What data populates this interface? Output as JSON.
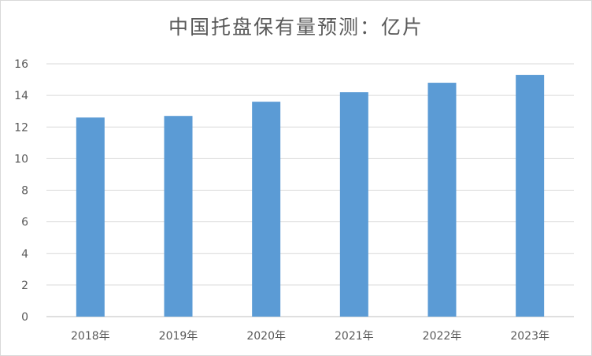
{
  "chart_data": {
    "type": "bar",
    "title": "中国托盘保有量预测：亿片",
    "xlabel": "",
    "ylabel": "",
    "categories": [
      "2018年",
      "2019年",
      "2020年",
      "2021年",
      "2022年",
      "2023年"
    ],
    "values": [
      12.6,
      12.7,
      13.6,
      14.2,
      14.8,
      15.3
    ],
    "ylim": [
      0,
      16
    ],
    "yticks": [
      0,
      2,
      4,
      6,
      8,
      10,
      12,
      14,
      16
    ],
    "grid": true,
    "legend": "none",
    "colors": {
      "bar": "#5b9bd5",
      "grid": "#d9d9d9",
      "axis": "#bfbfbf",
      "text": "#595959"
    }
  }
}
